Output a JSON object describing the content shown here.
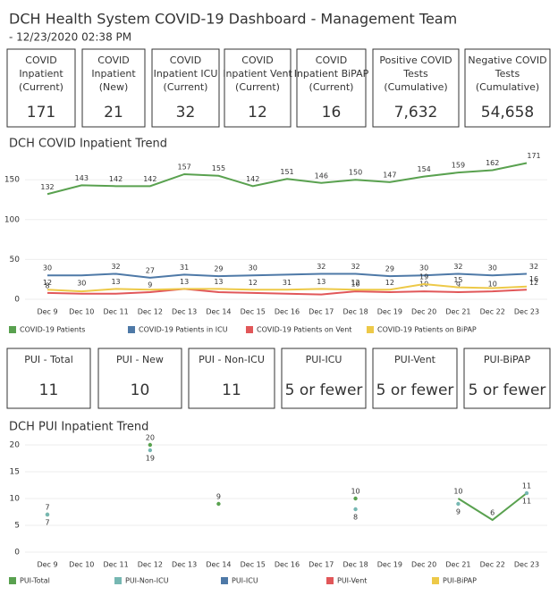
{
  "header": {
    "title": "DCH Health System COVID-19 Dashboard - Management Team",
    "subtitle": "- 12/23/2020 02:38 PM"
  },
  "kpis_top": [
    {
      "lines": [
        "COVID",
        "Inpatient",
        "(Current)"
      ],
      "value": "171"
    },
    {
      "lines": [
        "COVID",
        "Inpatient",
        "(New)"
      ],
      "value": "21"
    },
    {
      "lines": [
        "COVID",
        "Inpatient ICU",
        "(Current)"
      ],
      "value": "32"
    },
    {
      "lines": [
        "COVID",
        "Inpatient Vent",
        "(Current)"
      ],
      "value": "12"
    },
    {
      "lines": [
        "COVID",
        "Inpatient BiPAP",
        "(Current)"
      ],
      "value": "16"
    },
    {
      "lines": [
        "Positive COVID",
        "Tests",
        "(Cumulative)"
      ],
      "value": "7,632"
    },
    {
      "lines": [
        "Negative COVID",
        "Tests",
        "(Cumulative)"
      ],
      "value": "54,658"
    }
  ],
  "kpis_pui": [
    {
      "lines": [
        "PUI - Total"
      ],
      "value": "11"
    },
    {
      "lines": [
        "PUI - New"
      ],
      "value": "10"
    },
    {
      "lines": [
        "PUI - Non-ICU"
      ],
      "value": "11"
    },
    {
      "lines": [
        "PUI-ICU"
      ],
      "value": "5 or fewer"
    },
    {
      "lines": [
        "PUI-Vent"
      ],
      "value": "5 or fewer"
    },
    {
      "lines": [
        "PUI-BiPAP"
      ],
      "value": "5 or fewer"
    }
  ],
  "chart_data": [
    {
      "type": "line",
      "title": "DCH COVID Inpatient Trend",
      "categories": [
        "Dec 9",
        "Dec 10",
        "Dec 11",
        "Dec 12",
        "Dec 13",
        "Dec 14",
        "Dec 15",
        "Dec 16",
        "Dec 17",
        "Dec 18",
        "Dec 19",
        "Dec 20",
        "Dec 21",
        "Dec 22",
        "Dec 23"
      ],
      "ylim": [
        0,
        176
      ],
      "yticks": [
        0,
        50,
        100,
        150
      ],
      "grid": true,
      "series": [
        {
          "name": "COVID-19 Patients",
          "color": "#59a14f",
          "values": [
            132,
            143,
            142,
            142,
            157,
            155,
            142,
            151,
            146,
            150,
            147,
            154,
            159,
            162,
            171
          ],
          "value_labels": [
            132,
            143,
            142,
            142,
            157,
            155,
            142,
            151,
            146,
            150,
            147,
            154,
            159,
            162,
            171
          ]
        },
        {
          "name": "COVID-19 Patients in ICU",
          "color": "#4e79a7",
          "values": [
            30,
            30,
            32,
            27,
            31,
            29,
            30,
            31,
            32,
            32,
            29,
            30,
            32,
            30,
            32
          ],
          "value_labels": [
            30,
            30,
            32,
            27,
            31,
            29,
            30,
            31,
            32,
            32,
            29,
            30,
            32,
            30,
            32
          ]
        },
        {
          "name": "COVID-19 Patients on Vent",
          "color": "#e15759",
          "values": [
            8,
            7,
            7,
            9,
            13,
            9,
            8,
            7,
            6,
            10,
            9,
            10,
            9,
            10,
            12
          ],
          "value_labels": [
            8,
            null,
            null,
            9,
            13,
            null,
            null,
            null,
            null,
            10,
            null,
            10,
            9,
            10,
            12
          ]
        },
        {
          "name": "COVID-19 Patients on BiPAP",
          "color": "#edc948",
          "values": [
            12,
            10,
            13,
            12,
            13,
            13,
            12,
            12,
            13,
            12,
            12,
            19,
            15,
            14,
            16
          ],
          "value_labels": [
            12,
            null,
            13,
            null,
            null,
            13,
            12,
            null,
            13,
            12,
            12,
            19,
            15,
            null,
            16
          ]
        }
      ]
    },
    {
      "type": "line",
      "title": "DCH PUI Inpatient Trend",
      "categories": [
        "Dec 9",
        "Dec 10",
        "Dec 11",
        "Dec 12",
        "Dec 13",
        "Dec 14",
        "Dec 15",
        "Dec 16",
        "Dec 17",
        "Dec 18",
        "Dec 19",
        "Dec 20",
        "Dec 21",
        "Dec 22",
        "Dec 23"
      ],
      "ylim": [
        0,
        22
      ],
      "yticks": [
        0,
        5,
        10,
        15,
        20
      ],
      "grid": true,
      "series": [
        {
          "name": "PUI-Total",
          "color": "#59a14f",
          "values": [
            7,
            null,
            null,
            20,
            null,
            9,
            null,
            null,
            null,
            10,
            null,
            null,
            10,
            6,
            11
          ],
          "value_labels": [
            7,
            null,
            null,
            20,
            null,
            9,
            null,
            null,
            null,
            10,
            null,
            null,
            10,
            6,
            11
          ]
        },
        {
          "name": "PUI-Non-ICU",
          "color": "#76b7b2",
          "values": [
            7,
            null,
            null,
            19,
            null,
            null,
            null,
            null,
            null,
            8,
            null,
            null,
            9,
            null,
            11
          ],
          "value_labels": [
            7,
            null,
            null,
            19,
            null,
            null,
            null,
            null,
            null,
            8,
            null,
            null,
            9,
            null,
            11
          ]
        },
        {
          "name": "PUI-ICU",
          "color": "#4e79a7",
          "values": [
            null,
            null,
            null,
            null,
            null,
            null,
            null,
            null,
            null,
            null,
            null,
            null,
            null,
            null,
            null
          ]
        },
        {
          "name": "PUI-Vent",
          "color": "#e15759",
          "values": [
            null,
            null,
            null,
            null,
            null,
            null,
            null,
            null,
            null,
            null,
            null,
            null,
            null,
            null,
            null
          ]
        },
        {
          "name": "PUI-BiPAP",
          "color": "#edc948",
          "values": [
            null,
            null,
            null,
            null,
            null,
            null,
            null,
            null,
            null,
            null,
            null,
            null,
            null,
            null,
            null
          ]
        }
      ]
    }
  ]
}
